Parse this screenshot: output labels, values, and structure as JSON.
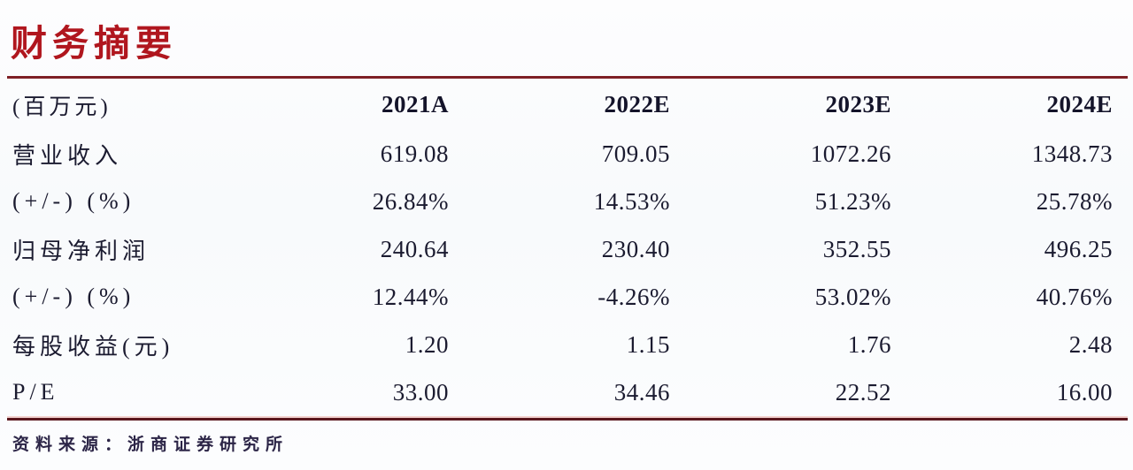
{
  "page": {
    "title": "财务摘要",
    "source_label": "资料来源：浙商证券研究所"
  },
  "table": {
    "unit_header": "(百万元)",
    "columns": [
      "2021A",
      "2022E",
      "2023E",
      "2024E"
    ],
    "rows": [
      {
        "label": "营业收入",
        "values": [
          "619.08",
          "709.05",
          "1072.26",
          "1348.73"
        ]
      },
      {
        "label": "(+/-) (%)",
        "values": [
          "26.84%",
          "14.53%",
          "51.23%",
          "25.78%"
        ]
      },
      {
        "label": "归母净利润",
        "values": [
          "240.64",
          "230.40",
          "352.55",
          "496.25"
        ]
      },
      {
        "label": "(+/-) (%)",
        "values": [
          "12.44%",
          "-4.26%",
          "53.02%",
          "40.76%"
        ]
      },
      {
        "label": "每股收益(元)",
        "values": [
          "1.20",
          "1.15",
          "1.76",
          "2.48"
        ]
      },
      {
        "label": "P/E",
        "values": [
          "33.00",
          "34.46",
          "22.52",
          "16.00"
        ]
      }
    ]
  },
  "colors": {
    "title_red": "#b0161e",
    "rule_red": "#7e2025",
    "rule_dark": "#5a161d",
    "text_dark": "#1b1b30",
    "footer_dark": "#2c2547",
    "background": "#f9fbfc"
  }
}
